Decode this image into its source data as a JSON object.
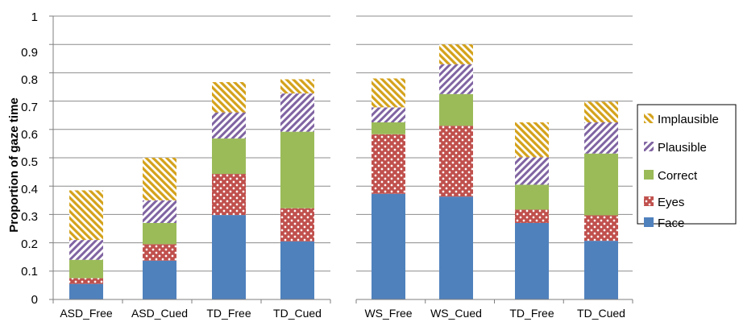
{
  "chart_data": {
    "type": "bar",
    "stacked": true,
    "ylabel": "Proportion of gaze time",
    "ylim": [
      0,
      1
    ],
    "yticks": [
      "0",
      "0.1",
      "0.2",
      "0.3",
      "0.4",
      "0.5",
      "0.6",
      "0.7",
      "0.8",
      "0.9",
      "1"
    ],
    "grid": true,
    "legend_position": "right",
    "series_order": [
      "Face",
      "Eyes",
      "Correct",
      "Plausible",
      "Implausible"
    ],
    "series_colors": {
      "Face": "#4f81bd",
      "Eyes": "#c0504d",
      "Correct": "#9bbb59",
      "Plausible": "#8064a2",
      "Implausible": "#d4a21b"
    },
    "legend": [
      {
        "name": "Implausible"
      },
      {
        "name": "Plausible"
      },
      {
        "name": "Correct"
      },
      {
        "name": "Eyes"
      },
      {
        "name": "Face"
      }
    ],
    "panels": [
      {
        "categories": [
          "ASD_Free",
          "ASD_Cued",
          "TD_Free",
          "TD_Cued"
        ],
        "series": [
          {
            "name": "Face",
            "values": [
              0.055,
              0.137,
              0.298,
              0.205
            ]
          },
          {
            "name": "Eyes",
            "values": [
              0.02,
              0.058,
              0.145,
              0.117
            ]
          },
          {
            "name": "Correct",
            "values": [
              0.065,
              0.075,
              0.125,
              0.27
            ]
          },
          {
            "name": "Plausible",
            "values": [
              0.07,
              0.08,
              0.092,
              0.135
            ]
          },
          {
            "name": "Implausible",
            "values": [
              0.175,
              0.15,
              0.107,
              0.05
            ]
          }
        ]
      },
      {
        "categories": [
          "WS_Free",
          "WS_Cued",
          "TD_Free",
          "TD_Cued"
        ],
        "series": [
          {
            "name": "Face",
            "values": [
              0.373,
              0.363,
              0.27,
              0.207
            ]
          },
          {
            "name": "Eyes",
            "values": [
              0.21,
              0.25,
              0.047,
              0.09
            ]
          },
          {
            "name": "Correct",
            "values": [
              0.042,
              0.112,
              0.088,
              0.218
            ]
          },
          {
            "name": "Plausible",
            "values": [
              0.053,
              0.105,
              0.097,
              0.11
            ]
          },
          {
            "name": "Implausible",
            "values": [
              0.102,
              0.07,
              0.123,
              0.073
            ]
          }
        ]
      }
    ]
  }
}
